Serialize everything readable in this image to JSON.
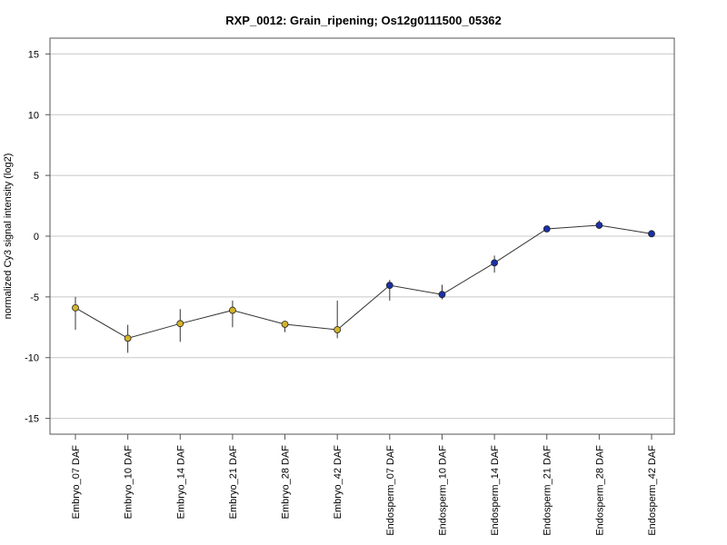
{
  "chart_data": {
    "type": "line",
    "title": "RXP_0012: Grain_ripening; Os12g0111500_05362",
    "xlabel": "",
    "ylabel": "normalized Cy3 signal intensity (log2)",
    "ylim": [
      -16.3,
      16.3
    ],
    "yticks": [
      15,
      10,
      5,
      0,
      -5,
      -10,
      -15
    ],
    "ytick_labels": [
      "15",
      "10",
      "5",
      "0",
      "-5",
      "-10",
      "-15"
    ],
    "grid": true,
    "categories": [
      "Embryo_07 DAF",
      "Embryo_10 DAF",
      "Embryo_14 DAF",
      "Embryo_21 DAF",
      "Embryo_28 DAF",
      "Embryo_42 DAF",
      "Endosperm_07 DAF",
      "Endosperm_10 DAF",
      "Endosperm_14 DAF",
      "Endosperm_21 DAF",
      "Endosperm_28 DAF",
      "Endosperm_42 DAF"
    ],
    "values": [
      -5.9,
      -8.4,
      -7.2,
      -6.1,
      -7.25,
      -7.7,
      -4.05,
      -4.8,
      -2.2,
      0.6,
      0.9,
      0.2
    ],
    "err_low": [
      -7.7,
      -9.6,
      -8.7,
      -7.5,
      -7.9,
      -8.4,
      -5.3,
      -5.2,
      -3.0,
      0.5,
      0.6,
      0.1
    ],
    "err_high": [
      -5.0,
      -7.3,
      -6.0,
      -5.3,
      -7.0,
      -5.3,
      -3.6,
      -4.0,
      -1.6,
      0.8,
      1.3,
      0.35
    ],
    "colors": {
      "embryo": "#d4b429",
      "endosperm": "#1a30a8",
      "line": "#333333",
      "grid": "#c8c8c8"
    },
    "point_groups": [
      "embryo",
      "embryo",
      "embryo",
      "embryo",
      "embryo",
      "embryo",
      "endosperm",
      "endosperm",
      "endosperm",
      "endosperm",
      "endosperm",
      "endosperm"
    ]
  }
}
